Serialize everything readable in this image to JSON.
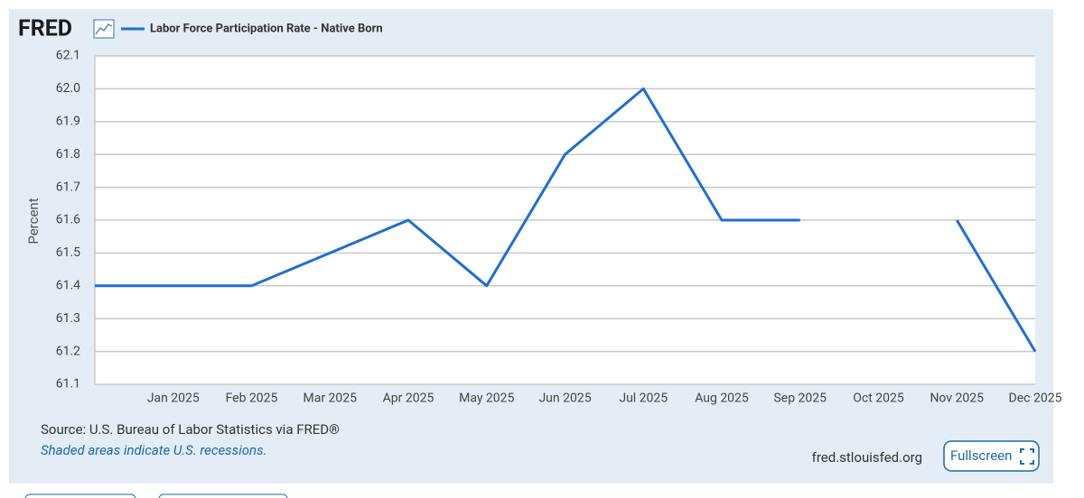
{
  "logo": "FRED",
  "chart_data": {
    "type": "line",
    "y_label": "Percent",
    "categories": [
      null,
      "Jan 2025",
      "Feb 2025",
      "Mar 2025",
      "Apr 2025",
      "May 2025",
      "Jun 2025",
      "Jul 2025",
      "Aug 2025",
      "Sep 2025",
      "Oct 2025",
      "Nov 2025",
      "Dec 2025"
    ],
    "series": [
      {
        "name": "Labor Force Participation Rate - Native Born",
        "color": "#1f6fd0",
        "values": [
          61.4,
          61.4,
          61.4,
          61.5,
          61.6,
          61.4,
          61.8,
          62.0,
          61.6,
          61.6,
          null,
          61.6,
          61.2
        ]
      }
    ],
    "ylim": [
      61.1,
      62.1
    ],
    "yticks": [
      61.1,
      61.2,
      61.3,
      61.4,
      61.5,
      61.6,
      61.7,
      61.8,
      61.9,
      {
        "value": 62,
        "label": "62.0"
      },
      62.1
    ],
    "grid": true,
    "source": "Source: U.S. Bureau of Labor Statistics via FRED®",
    "note": "Shaded areas indicate U.S. recessions."
  },
  "footer": {
    "site": "fred.stlouisfed.org",
    "button": "Fullscreen"
  }
}
